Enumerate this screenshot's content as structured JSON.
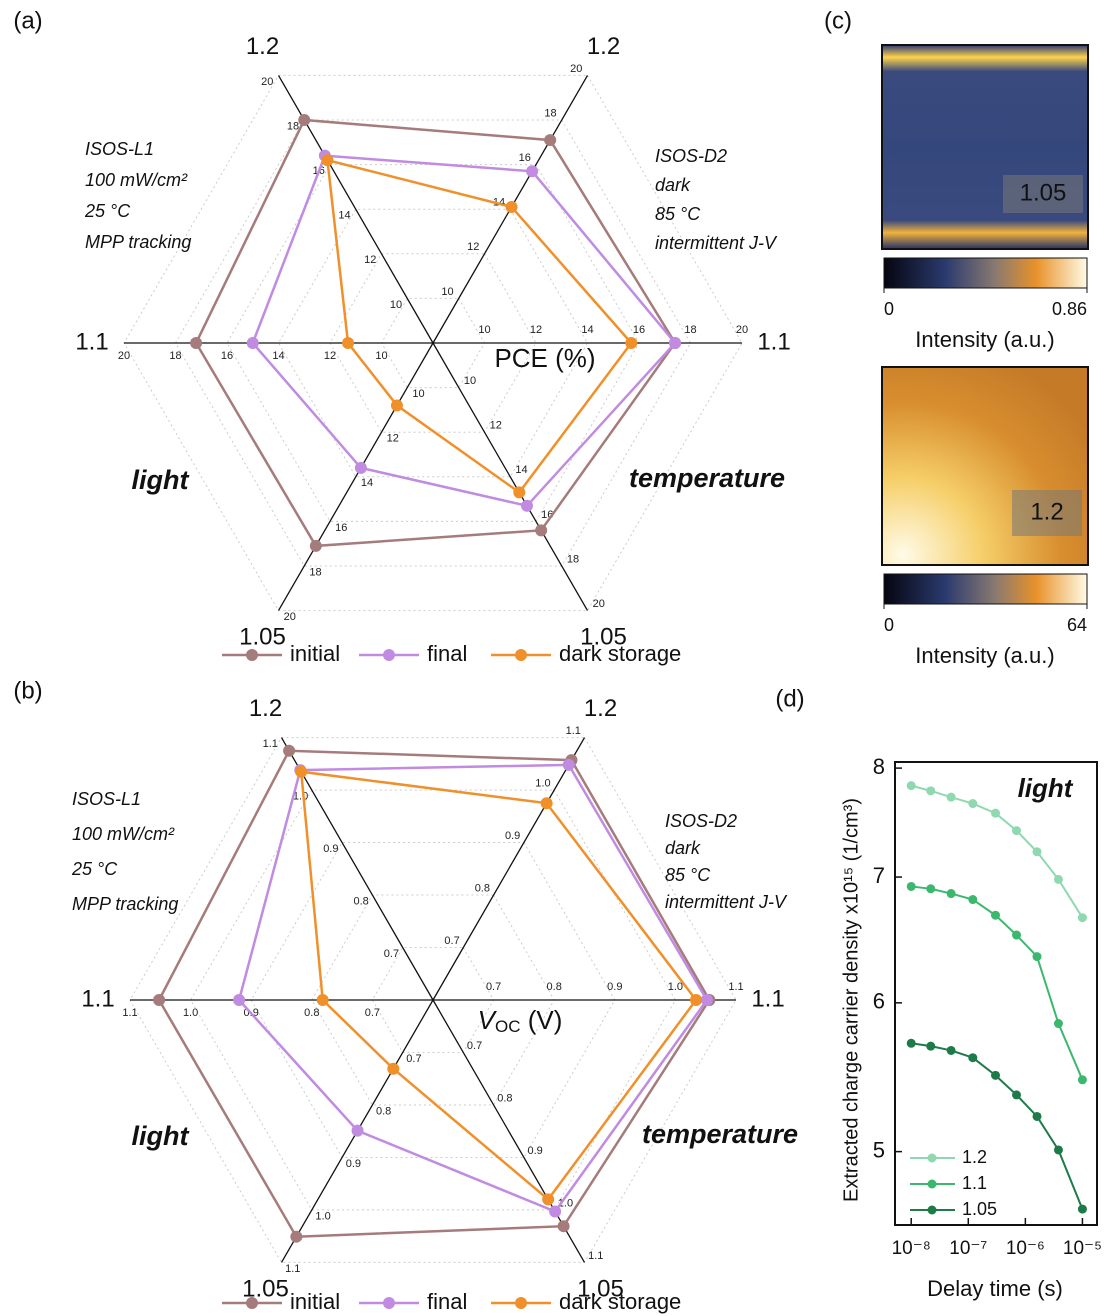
{
  "chart_data": [
    {
      "type": "radar",
      "panel": "(a)",
      "r_label": [
        "PCE (%)"
      ],
      "categories": [
        "1.2",
        "1.1",
        "1.05",
        "1.05",
        "1.1",
        "1.2"
      ],
      "category_colors": [
        "#e8383d",
        "#e8383d",
        "#e8383d",
        "#1f63d0",
        "#1f63d0",
        "#1f63d0"
      ],
      "rlim": [
        8,
        20
      ],
      "rticks": [
        10,
        12,
        14,
        16,
        18,
        20
      ],
      "groups": [
        {
          "name": "light",
          "color": "#1f63d0",
          "notes": [
            "ISOS-L1",
            "100 mW/cm²",
            "25 °C",
            "MPP tracking"
          ]
        },
        {
          "name": "temperature",
          "color": "#e8383d",
          "notes": [
            "ISOS-D2",
            "dark",
            "85 °C",
            "intermittent J-V"
          ]
        }
      ],
      "series": [
        {
          "name": "initial",
          "color": "#a57b7b",
          "values": [
            17.1,
            17.4,
            16.4,
            17.1,
            17.2,
            18.0
          ]
        },
        {
          "name": "final",
          "color": "#c08be0",
          "values": [
            15.7,
            17.4,
            15.3,
            13.6,
            15.0,
            16.4
          ]
        },
        {
          "name": "dark storage",
          "color": "#f0902a",
          "values": [
            14.1,
            15.7,
            14.7,
            10.8,
            11.3,
            16.2
          ]
        }
      ]
    },
    {
      "type": "radar",
      "panel": "(b)",
      "r_label": [
        "V",
        "OC",
        " (V)"
      ],
      "categories": [
        "1.2",
        "1.1",
        "1.05",
        "1.05",
        "1.1",
        "1.2"
      ],
      "category_colors": [
        "#e8383d",
        "#e8383d",
        "#e8383d",
        "#1f63d0",
        "#1f63d0",
        "#1f63d0"
      ],
      "rlim": [
        0.6,
        1.1
      ],
      "rticks": [
        0.7,
        0.8,
        0.9,
        {
          "value": 1.0,
          "label": "1.0"
        },
        1.1
      ],
      "groups": [
        {
          "name": "light",
          "color": "#1f63d0",
          "notes": [
            "ISOS-L1",
            "100 mW/cm²",
            "25 °C",
            "MPP tracking"
          ]
        },
        {
          "name": "temperature",
          "color": "#e8383d",
          "notes": [
            "ISOS-D2",
            "dark",
            "85 °C",
            "intermittent J-V"
          ]
        }
      ],
      "series": [
        {
          "name": "initial",
          "color": "#a57b7b",
          "values": [
            1.057,
            1.056,
            1.031,
            1.051,
            1.052,
            1.075
          ]
        },
        {
          "name": "final",
          "color": "#c08be0",
          "values": [
            1.048,
            1.052,
            1.003,
            0.849,
            0.92,
            1.038
          ]
        },
        {
          "name": "dark storage",
          "color": "#f0902a",
          "values": [
            0.975,
            1.034,
            0.98,
            0.731,
            0.782,
            1.035
          ]
        }
      ]
    },
    {
      "type": "heatmap",
      "panel": "(c)",
      "images": [
        {
          "label": "1.05",
          "clim": [
            0,
            0.86
          ],
          "cticks": [
            0,
            0.86
          ],
          "colorbar_label": "Intensity (a.u.)"
        },
        {
          "label": "1.2",
          "clim": [
            0,
            64
          ],
          "cticks": [
            0,
            64
          ],
          "colorbar_label": "Intensity (a.u.)"
        }
      ]
    },
    {
      "type": "line",
      "panel": "(d)",
      "annotation": "light",
      "annotation_color": "#4a8fd6",
      "xlabel": "Delay time (s)",
      "ylabel": "Extracted charge carrier density x10¹⁵ (1/cm³)",
      "xlog": true,
      "ylog": true,
      "x": [
        1e-08,
        2.2e-08,
        5e-08,
        1.2e-07,
        3e-07,
        7e-07,
        1.6e-06,
        3.8e-06,
        1e-05
      ],
      "xlim": [
        5.2e-09,
        1.8e-05
      ],
      "xticks": [
        {
          "value": 1e-08,
          "label": "10⁻⁸"
        },
        {
          "value": 1e-07,
          "label": "10⁻⁷"
        },
        {
          "value": 1e-06,
          "label": "10⁻⁶"
        },
        {
          "value": 1e-05,
          "label": "10⁻⁵"
        }
      ],
      "ylim": [
        4.57,
        8.06
      ],
      "yticks": [
        8,
        7,
        6,
        5
      ],
      "series": [
        {
          "name": "1.2",
          "color": "#8ed9b0",
          "values": [
            7.83,
            7.78,
            7.72,
            7.66,
            7.57,
            7.41,
            7.22,
            6.98,
            6.66
          ]
        },
        {
          "name": "1.1",
          "color": "#3cb86e",
          "values": [
            6.92,
            6.9,
            6.86,
            6.81,
            6.68,
            6.52,
            6.35,
            5.85,
            5.46
          ]
        },
        {
          "name": "1.05",
          "color": "#1f7a4a",
          "values": [
            5.71,
            5.69,
            5.66,
            5.61,
            5.49,
            5.36,
            5.22,
            5.01,
            4.66
          ]
        }
      ]
    }
  ]
}
